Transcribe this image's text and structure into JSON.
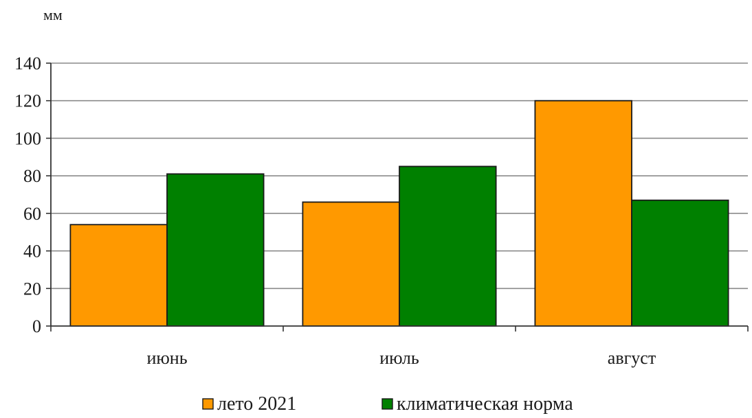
{
  "chart_data": {
    "type": "bar",
    "unit_label": "мм",
    "categories": [
      "июнь",
      "июль",
      "август"
    ],
    "series": [
      {
        "name": "лето 2021",
        "values": [
          54,
          66,
          120
        ],
        "color": "#FF9900"
      },
      {
        "name": "климатическая норма",
        "values": [
          81,
          85,
          67
        ],
        "color": "#008000"
      }
    ],
    "ylim": [
      0,
      140
    ],
    "yticks": [
      0,
      20,
      40,
      60,
      80,
      100,
      120,
      140
    ],
    "grid": true,
    "legend_position": "bottom-center"
  }
}
